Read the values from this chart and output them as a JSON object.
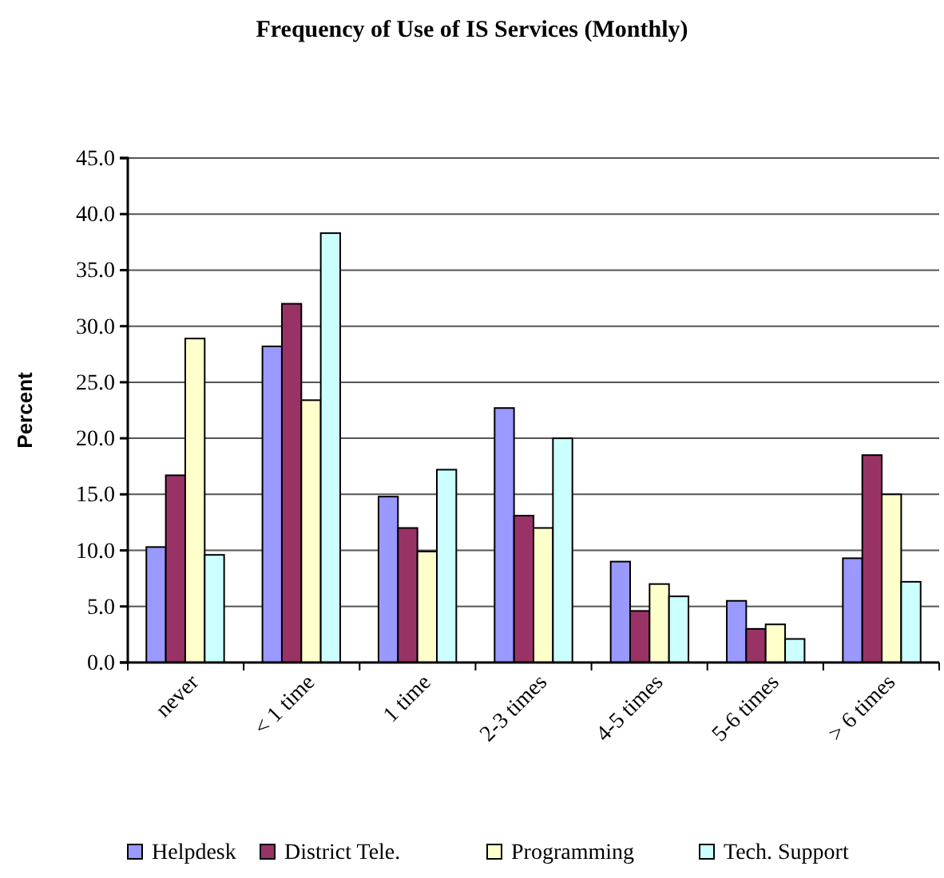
{
  "chart_data": {
    "type": "bar",
    "title": "Frequency of Use of IS Services (Monthly)",
    "ylabel": "Percent",
    "categories": [
      "never",
      "< 1 time",
      "1 time",
      "2-3 times",
      "4-5 times",
      "5-6 times",
      "> 6 times"
    ],
    "series": [
      {
        "name": "Helpdesk",
        "color": "#9999ff",
        "values": [
          10.3,
          28.2,
          14.8,
          22.7,
          9.0,
          5.5,
          9.3
        ]
      },
      {
        "name": "District Tele.",
        "color": "#993366",
        "values": [
          16.7,
          32.0,
          12.0,
          13.1,
          4.6,
          3.0,
          18.5
        ]
      },
      {
        "name": "Programming",
        "color": "#ffffcc",
        "values": [
          28.9,
          23.4,
          9.9,
          12.0,
          7.0,
          3.4,
          15.0
        ]
      },
      {
        "name": "Tech. Support",
        "color": "#ccffff",
        "values": [
          9.6,
          38.3,
          17.2,
          20.0,
          5.9,
          2.1,
          7.2
        ]
      }
    ],
    "ylim": [
      0,
      45
    ],
    "yticks": [
      {
        "value": 0,
        "label": "0.0"
      },
      {
        "value": 5,
        "label": "5.0"
      },
      {
        "value": 10,
        "label": "10.0"
      },
      {
        "value": 15,
        "label": "15.0"
      },
      {
        "value": 20,
        "label": "20.0"
      },
      {
        "value": 25,
        "label": "25.0"
      },
      {
        "value": 30,
        "label": "30.0"
      },
      {
        "value": 35,
        "label": "35.0"
      },
      {
        "value": 40,
        "label": "40.0"
      },
      {
        "value": 45,
        "label": "45.0"
      }
    ],
    "grid": "y",
    "legend": "bottom"
  }
}
